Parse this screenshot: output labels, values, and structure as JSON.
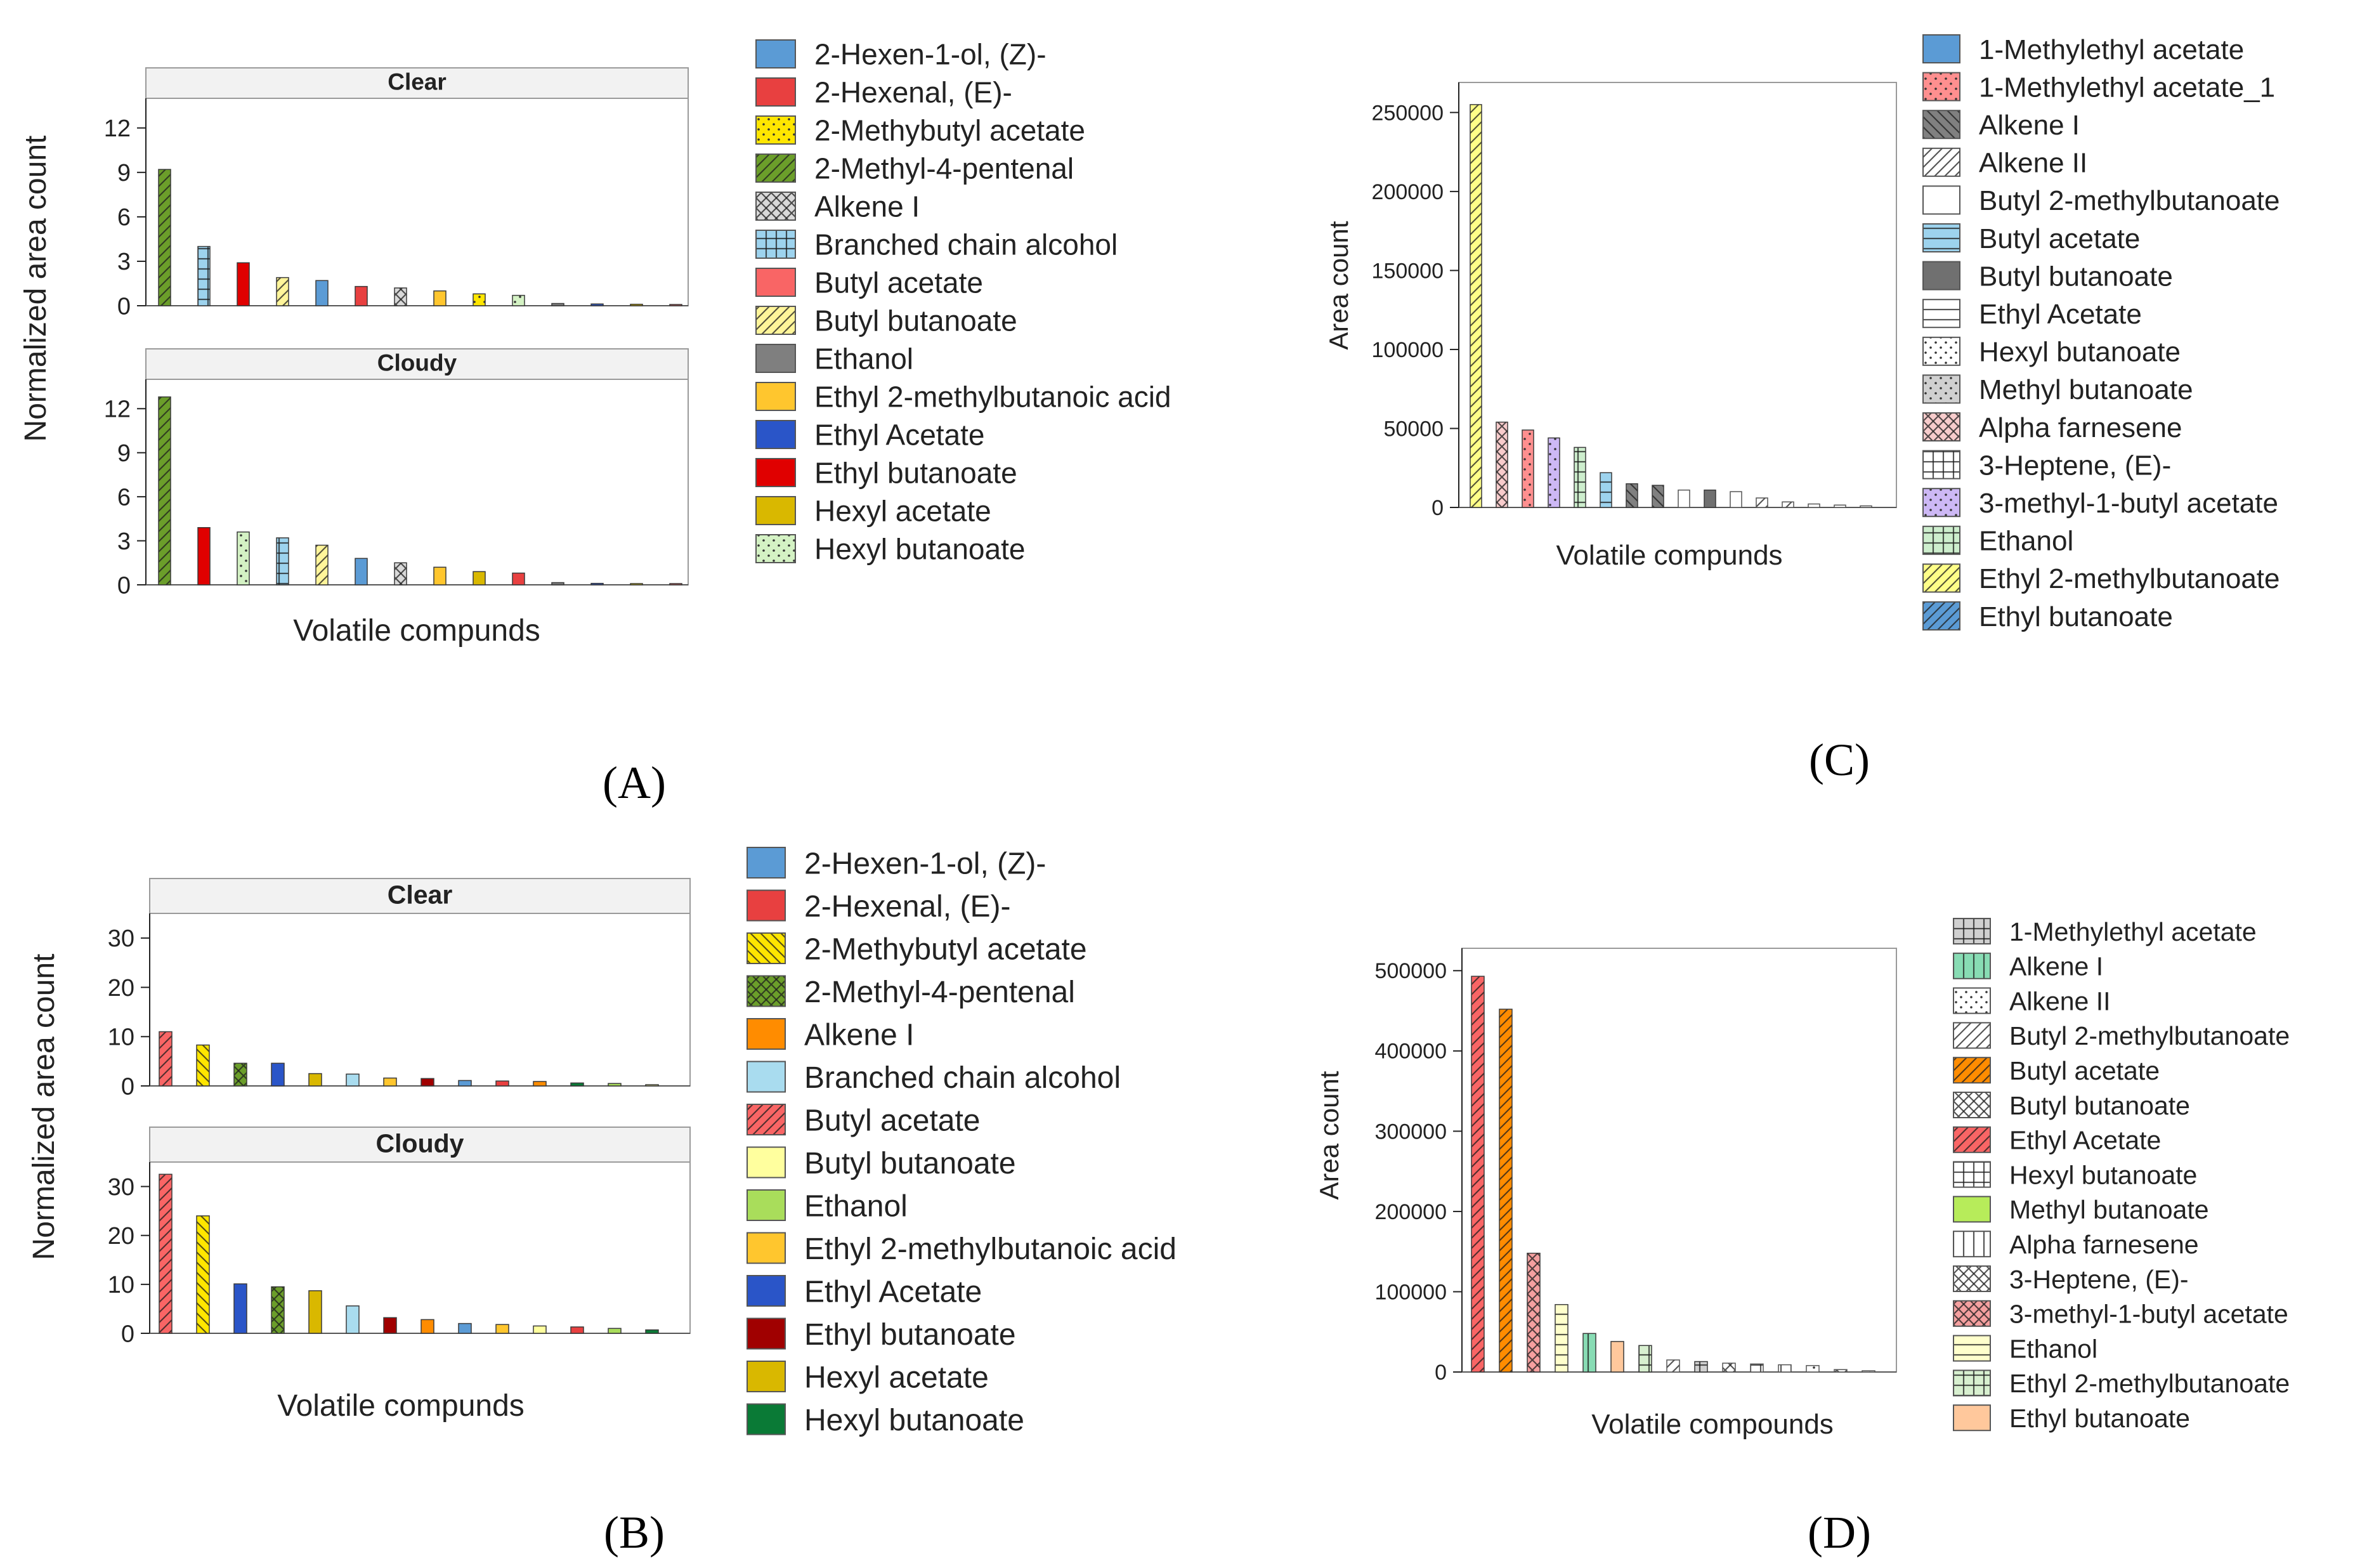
{
  "figure": {
    "panel_labels": [
      "(A)",
      "(B)",
      "(C)",
      "(D)"
    ]
  },
  "chart_data": [
    {
      "panel": "A",
      "type": "bar",
      "layout": "faceted",
      "xlabel": "Volatile compunds",
      "ylabel": "Normalized area count",
      "facets": [
        {
          "title": "Clear",
          "ylim": [
            0,
            14
          ],
          "yticks": [
            0,
            3,
            6,
            9,
            12
          ],
          "bars": [
            {
              "compound": "2-Methyl-4-pentenal",
              "value": 9.2
            },
            {
              "compound": "Branched chain alcohol",
              "value": 4.0
            },
            {
              "compound": "Ethyl butanoate",
              "value": 2.9
            },
            {
              "compound": "Butyl butanoate",
              "value": 1.9
            },
            {
              "compound": "2-Hexen-1-ol, (Z)-",
              "value": 1.7
            },
            {
              "compound": "2-Hexenal, (E)-",
              "value": 1.3
            },
            {
              "compound": "Alkene I",
              "value": 1.2
            },
            {
              "compound": "Ethyl 2-methylbutanoic acid",
              "value": 1.0
            },
            {
              "compound": "2-Methybutyl acetate",
              "value": 0.8
            },
            {
              "compound": "Hexyl butanoate",
              "value": 0.7
            },
            {
              "compound": "Ethanol",
              "value": 0.15
            },
            {
              "compound": "Ethyl Acetate",
              "value": 0.12
            },
            {
              "compound": "Hexyl acetate",
              "value": 0.1
            },
            {
              "compound": "Butyl acetate",
              "value": 0.08
            }
          ]
        },
        {
          "title": "Cloudy",
          "ylim": [
            0,
            14
          ],
          "yticks": [
            0,
            3,
            6,
            9,
            12
          ],
          "bars": [
            {
              "compound": "2-Methyl-4-pentenal",
              "value": 12.8
            },
            {
              "compound": "Ethyl butanoate",
              "value": 3.9
            },
            {
              "compound": "Hexyl butanoate",
              "value": 3.6
            },
            {
              "compound": "Branched chain alcohol",
              "value": 3.2
            },
            {
              "compound": "Butyl butanoate",
              "value": 2.7
            },
            {
              "compound": "2-Hexen-1-ol, (Z)-",
              "value": 1.8
            },
            {
              "compound": "Alkene I",
              "value": 1.5
            },
            {
              "compound": "Ethyl 2-methylbutanoic acid",
              "value": 1.2
            },
            {
              "compound": "Hexyl acetate",
              "value": 0.9
            },
            {
              "compound": "2-Hexenal, (E)-",
              "value": 0.8
            },
            {
              "compound": "Ethanol",
              "value": 0.15
            },
            {
              "compound": "Ethyl Acetate",
              "value": 0.1
            },
            {
              "compound": "2-Methybutyl acetate",
              "value": 0.08
            },
            {
              "compound": "Butyl acetate",
              "value": 0.05
            }
          ]
        }
      ],
      "legend": [
        {
          "label": "2-Hexen-1-ol, (Z)-",
          "color": "#5b9bd5",
          "pattern": "solid"
        },
        {
          "label": "2-Hexenal, (E)-",
          "color": "#e84040",
          "pattern": "solid"
        },
        {
          "label": "2-Methybutyl acetate",
          "color": "#ffe600",
          "pattern": "dots"
        },
        {
          "label": "2-Methyl-4-pentenal",
          "color": "#6b9e2a",
          "pattern": "diag"
        },
        {
          "label": "Alkene I",
          "color": "#d9d9d9",
          "pattern": "cross"
        },
        {
          "label": "Branched chain alcohol",
          "color": "#9dd3ee",
          "pattern": "grid"
        },
        {
          "label": "Butyl acetate",
          "color": "#f96565",
          "pattern": "solid"
        },
        {
          "label": "Butyl butanoate",
          "color": "#fff59a",
          "pattern": "diag"
        },
        {
          "label": "Ethanol",
          "color": "#7f7f7f",
          "pattern": "solid"
        },
        {
          "label": "Ethyl 2-methylbutanoic acid",
          "color": "#ffc62e",
          "pattern": "solid"
        },
        {
          "label": "Ethyl Acetate",
          "color": "#2a55c8",
          "pattern": "solid"
        },
        {
          "label": "Ethyl butanoate",
          "color": "#e00000",
          "pattern": "solid"
        },
        {
          "label": "Hexyl acetate",
          "color": "#d9b800",
          "pattern": "solid"
        },
        {
          "label": "Hexyl butanoate",
          "color": "#d4f2c4",
          "pattern": "dots"
        }
      ]
    },
    {
      "panel": "B",
      "type": "bar",
      "layout": "faceted",
      "xlabel": "Volatile compunds",
      "ylabel": "Normalized area count",
      "facets": [
        {
          "title": "Clear",
          "ylim": [
            0,
            35
          ],
          "yticks": [
            0,
            10,
            20,
            30
          ],
          "bars": [
            {
              "compound": "Butyl acetate",
              "value": 11.0
            },
            {
              "compound": "2-Methybutyl acetate",
              "value": 8.3
            },
            {
              "compound": "2-Methyl-4-pentenal",
              "value": 4.6
            },
            {
              "compound": "Ethyl Acetate",
              "value": 4.6
            },
            {
              "compound": "Hexyl acetate",
              "value": 2.5
            },
            {
              "compound": "Branched chain alcohol",
              "value": 2.4
            },
            {
              "compound": "Ethyl 2-methylbutanoic acid",
              "value": 1.6
            },
            {
              "compound": "Ethyl butanoate",
              "value": 1.5
            },
            {
              "compound": "2-Hexen-1-ol, (Z)-",
              "value": 1.1
            },
            {
              "compound": "2-Hexenal, (E)-",
              "value": 1.0
            },
            {
              "compound": "Alkene I",
              "value": 0.9
            },
            {
              "compound": "Hexyl butanoate",
              "value": 0.6
            },
            {
              "compound": "Ethanol",
              "value": 0.5
            },
            {
              "compound": "Butyl butanoate",
              "value": 0.2
            }
          ]
        },
        {
          "title": "Cloudy",
          "ylim": [
            0,
            35
          ],
          "yticks": [
            0,
            10,
            20,
            30
          ],
          "bars": [
            {
              "compound": "Butyl acetate",
              "value": 32.5
            },
            {
              "compound": "2-Methybutyl acetate",
              "value": 24.0
            },
            {
              "compound": "Ethyl Acetate",
              "value": 10.1
            },
            {
              "compound": "2-Methyl-4-pentenal",
              "value": 9.5
            },
            {
              "compound": "Hexyl acetate",
              "value": 8.7
            },
            {
              "compound": "Branched chain alcohol",
              "value": 5.6
            },
            {
              "compound": "Ethyl butanoate",
              "value": 3.2
            },
            {
              "compound": "Alkene I",
              "value": 2.8
            },
            {
              "compound": "2-Hexen-1-ol, (Z)-",
              "value": 2.0
            },
            {
              "compound": "Ethyl 2-methylbutanoic acid",
              "value": 1.8
            },
            {
              "compound": "Butyl butanoate",
              "value": 1.5
            },
            {
              "compound": "2-Hexenal, (E)-",
              "value": 1.3
            },
            {
              "compound": "Ethanol",
              "value": 1.0
            },
            {
              "compound": "Hexyl butanoate",
              "value": 0.7
            }
          ]
        }
      ],
      "legend": [
        {
          "label": "2-Hexen-1-ol, (Z)-",
          "color": "#5b9bd5",
          "pattern": "solid"
        },
        {
          "label": "2-Hexenal, (E)-",
          "color": "#e84040",
          "pattern": "solid"
        },
        {
          "label": "2-Methybutyl acetate",
          "color": "#ffe600",
          "pattern": "diagback"
        },
        {
          "label": "2-Methyl-4-pentenal",
          "color": "#6b9e2a",
          "pattern": "cross"
        },
        {
          "label": "Alkene I",
          "color": "#ff8c00",
          "pattern": "solid"
        },
        {
          "label": "Branched chain alcohol",
          "color": "#a9dcef",
          "pattern": "solid"
        },
        {
          "label": "Butyl acetate",
          "color": "#f96565",
          "pattern": "diag"
        },
        {
          "label": "Butyl butanoate",
          "color": "#ffff9e",
          "pattern": "solid"
        },
        {
          "label": "Ethanol",
          "color": "#a9dd5b",
          "pattern": "solid"
        },
        {
          "label": "Ethyl 2-methylbutanoic acid",
          "color": "#ffc62e",
          "pattern": "solid"
        },
        {
          "label": "Ethyl Acetate",
          "color": "#2a55c8",
          "pattern": "solid"
        },
        {
          "label": "Ethyl butanoate",
          "color": "#a00000",
          "pattern": "solid"
        },
        {
          "label": "Hexyl acetate",
          "color": "#d9b800",
          "pattern": "solid"
        },
        {
          "label": "Hexyl butanoate",
          "color": "#0a7a36",
          "pattern": "solid"
        }
      ]
    },
    {
      "panel": "C",
      "type": "bar",
      "layout": "single",
      "xlabel": "Volatile compunds",
      "ylabel": "Area count",
      "ylim": [
        0,
        265000
      ],
      "yticks": [
        0,
        50000,
        100000,
        150000,
        200000,
        250000
      ],
      "bars": [
        {
          "compound": "Ethyl 2-methylbutanoate",
          "value": 255000
        },
        {
          "compound": "Alpha farnesene",
          "value": 54000
        },
        {
          "compound": "1-Methylethyl acetate_1",
          "value": 49000
        },
        {
          "compound": "3-methyl-1-butyl acetate",
          "value": 44000
        },
        {
          "compound": "Ethanol",
          "value": 38000
        },
        {
          "compound": "Butyl acetate",
          "value": 22000
        },
        {
          "compound": "Alkene I",
          "value": 15000
        },
        {
          "compound": "Alkene I",
          "value": 14000
        },
        {
          "compound": "Butyl 2-methylbutanoate",
          "value": 11000
        },
        {
          "compound": "Butyl butanoate",
          "value": 11000
        },
        {
          "compound": "Butyl 2-methylbutanoate",
          "value": 10000
        },
        {
          "compound": "Alkene II",
          "value": 6000
        },
        {
          "compound": "Alkene II",
          "value": 3500
        },
        {
          "compound": "Ethyl Acetate",
          "value": 2200
        },
        {
          "compound": "Ethyl Acetate",
          "value": 1500
        },
        {
          "compound": "Hexyl butanoate",
          "value": 1000
        }
      ],
      "legend": [
        {
          "label": "1-Methylethyl acetate",
          "color": "#5b9bd5",
          "pattern": "solid"
        },
        {
          "label": "1-Methylethyl acetate_1",
          "color": "#ff8f8f",
          "pattern": "dots"
        },
        {
          "label": "Alkene I",
          "color": "#808080",
          "pattern": "diagback"
        },
        {
          "label": "Alkene II",
          "color": "#ffffff",
          "pattern": "diag"
        },
        {
          "label": "Butyl 2-methylbutanoate",
          "color": "#ffffff",
          "pattern": "solid"
        },
        {
          "label": "Butyl acetate",
          "color": "#9dd3ee",
          "pattern": "hline"
        },
        {
          "label": "Butyl butanoate",
          "color": "#707070",
          "pattern": "solid"
        },
        {
          "label": "Ethyl Acetate",
          "color": "#ffffff",
          "pattern": "hline"
        },
        {
          "label": "Hexyl butanoate",
          "color": "#ffffff",
          "pattern": "dots"
        },
        {
          "label": "Methyl butanoate",
          "color": "#d0d0d0",
          "pattern": "dots"
        },
        {
          "label": "Alpha farnesene",
          "color": "#f8cccc",
          "pattern": "cross"
        },
        {
          "label": "3-Heptene, (E)-",
          "color": "#ffffff",
          "pattern": "grid"
        },
        {
          "label": "3-methyl-1-butyl acetate",
          "color": "#cdb8f5",
          "pattern": "dots"
        },
        {
          "label": "Ethanol",
          "color": "#cdeecd",
          "pattern": "grid"
        },
        {
          "label": "Ethyl 2-methylbutanoate",
          "color": "#ffff88",
          "pattern": "diag"
        },
        {
          "label": "Ethyl butanoate",
          "color": "#5b9bd5",
          "pattern": "diag"
        }
      ]
    },
    {
      "panel": "D",
      "type": "bar",
      "layout": "single",
      "xlabel": "Volatile compounds",
      "ylabel": "Area count",
      "ylim": [
        0,
        520000
      ],
      "yticks": [
        0,
        100000,
        200000,
        300000,
        400000,
        500000
      ],
      "bars": [
        {
          "compound": "Ethyl Acetate",
          "value": 493000
        },
        {
          "compound": "Butyl acetate",
          "value": 452000
        },
        {
          "compound": "3-methyl-1-butyl acetate",
          "value": 148000
        },
        {
          "compound": "Ethanol",
          "value": 84000
        },
        {
          "compound": "Alkene I",
          "value": 48000
        },
        {
          "compound": "Ethyl butanoate",
          "value": 38000
        },
        {
          "compound": "Ethyl 2-methylbutanoate",
          "value": 33000
        },
        {
          "compound": "Butyl 2-methylbutanoate",
          "value": 15000
        },
        {
          "compound": "1-Methylethyl acetate",
          "value": 13000
        },
        {
          "compound": "Butyl butanoate",
          "value": 11000
        },
        {
          "compound": "Hexyl butanoate",
          "value": 10000
        },
        {
          "compound": "Alpha farnesene",
          "value": 9000
        },
        {
          "compound": "Alkene II",
          "value": 8000
        },
        {
          "compound": "3-Heptene, (E)-",
          "value": 3000
        },
        {
          "compound": "Alkene II",
          "value": 1500
        }
      ],
      "legend": [
        {
          "label": "1-Methylethyl acetate",
          "color": "#d0d0d0",
          "pattern": "grid"
        },
        {
          "label": "Alkene I",
          "color": "#88dcb4",
          "pattern": "vline"
        },
        {
          "label": "Alkene II",
          "color": "#ffffff",
          "pattern": "dots"
        },
        {
          "label": "Butyl 2-methylbutanoate",
          "color": "#ffffff",
          "pattern": "diag"
        },
        {
          "label": "Butyl acetate",
          "color": "#ff8c00",
          "pattern": "diag"
        },
        {
          "label": "Butyl butanoate",
          "color": "#ffffff",
          "pattern": "cross"
        },
        {
          "label": "Ethyl Acetate",
          "color": "#f96565",
          "pattern": "diag"
        },
        {
          "label": "Hexyl butanoate",
          "color": "#ffffff",
          "pattern": "grid"
        },
        {
          "label": "Methyl butanoate",
          "color": "#b7ec5a",
          "pattern": "solid"
        },
        {
          "label": "Alpha farnesene",
          "color": "#ffffff",
          "pattern": "vline"
        },
        {
          "label": "3-Heptene, (E)-",
          "color": "#ffffff",
          "pattern": "cross"
        },
        {
          "label": "3-methyl-1-butyl acetate",
          "color": "#f5a0a0",
          "pattern": "cross"
        },
        {
          "label": "Ethanol",
          "color": "#ffffcc",
          "pattern": "hline"
        },
        {
          "label": "Ethyl 2-methylbutanoate",
          "color": "#d8f0d0",
          "pattern": "grid"
        },
        {
          "label": "Ethyl butanoate",
          "color": "#ffc89c",
          "pattern": "solid"
        }
      ]
    }
  ]
}
